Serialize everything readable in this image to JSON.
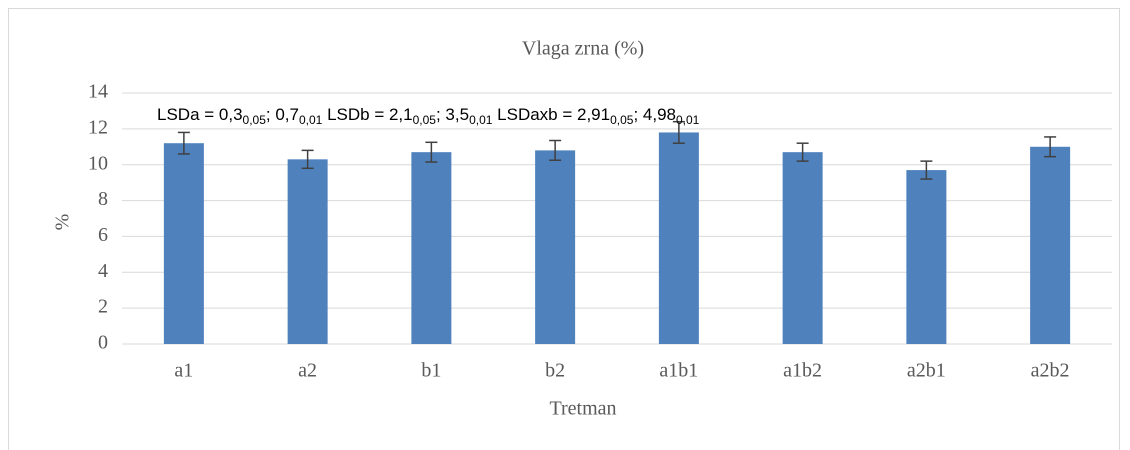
{
  "chart_data": {
    "type": "bar",
    "title": "Vlaga zrna (%)",
    "x_label": "Tretman",
    "y_label": "%",
    "categories": [
      "a1",
      "a2",
      "b1",
      "b2",
      "a1b1",
      "a1b2",
      "a2b1",
      "a2b2"
    ],
    "values": [
      11.2,
      10.3,
      10.7,
      10.8,
      11.8,
      10.7,
      9.7,
      11.0
    ],
    "errors": [
      0.6,
      0.5,
      0.55,
      0.55,
      0.6,
      0.5,
      0.5,
      0.55
    ],
    "color": "#4f81bd",
    "error_color": "#404040",
    "ylim": [
      0,
      14
    ],
    "yticks": [
      0,
      2,
      4,
      6,
      8,
      10,
      12,
      14
    ],
    "grid": true,
    "annotation": [
      {
        "text": "LSDa = 0,3",
        "sub": "0,05"
      },
      {
        "text": "; 0,7",
        "sub": "0,01"
      },
      {
        "text": " LSDb = 2,1",
        "sub": "0,05"
      },
      {
        "text": "; 3,5",
        "sub": "0,01"
      },
      {
        "text": " LSDaxb = 2,91",
        "sub": "0,05"
      },
      {
        "text": "; 4,98",
        "sub": "0,01"
      }
    ]
  }
}
